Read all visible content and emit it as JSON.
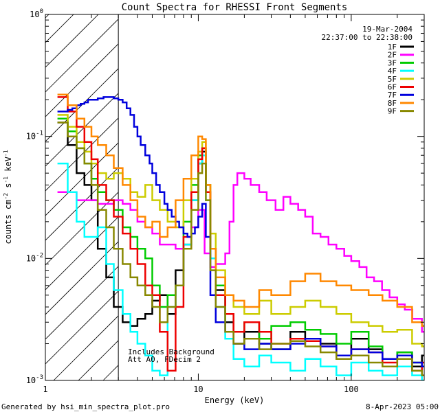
{
  "chart_data": {
    "type": "line",
    "title": "Count Spectra for RHESSI Front Segments",
    "xlabel": "Energy (keV)",
    "ylabel_main": "counts cm",
    "ylabel_exp1": "-2",
    "ylabel_mid": " s",
    "ylabel_exp2": "-1",
    "ylabel_end": " keV",
    "ylabel_exp3": "-1",
    "xscale": "log",
    "yscale": "log",
    "xlim": [
      1,
      300
    ],
    "ylim": [
      0.001,
      1
    ],
    "x_ticks": [
      {
        "value": 1,
        "label": "1"
      },
      {
        "value": 10,
        "label": "10"
      },
      {
        "value": 100,
        "label": "100"
      }
    ],
    "y_ticks": [
      {
        "value": 1,
        "mantissa": "10",
        "exp": "0"
      },
      {
        "value": 0.1,
        "mantissa": "10",
        "exp": "-1"
      },
      {
        "value": 0.01,
        "mantissa": "10",
        "exp": "-2"
      },
      {
        "value": 0.001,
        "mantissa": "10",
        "exp": "-3"
      }
    ],
    "date": "19-Mar-2004",
    "time_range": "22:37:00 to 22:38:00",
    "hatched_region_xmax": 3,
    "notes": [
      "Includes Background",
      "Att A0, FDecim 2"
    ],
    "footer_left": "Generated by hsi_min_spectra_plot.pro",
    "footer_right": "8-Apr-2023 05:00",
    "series": [
      {
        "name": "1F",
        "color": "#000000",
        "x": [
          1.2,
          1.4,
          1.6,
          1.8,
          2.0,
          2.2,
          2.5,
          2.8,
          3.2,
          3.6,
          4.0,
          4.5,
          5.0,
          5.6,
          6.3,
          7.1,
          8.0,
          9.0,
          10.0,
          10.6,
          11.2,
          12.0,
          13.0,
          15.0,
          17.0,
          20.0,
          25.0,
          30.0,
          40.0,
          50.0,
          63.0,
          80.0,
          100.0,
          130.0,
          160.0,
          200.0,
          250.0,
          290.0
        ],
        "y": [
          0.13,
          0.085,
          0.05,
          0.04,
          0.03,
          0.012,
          0.007,
          0.004,
          0.003,
          0.0028,
          0.0032,
          0.0035,
          0.0045,
          0.005,
          0.0035,
          0.008,
          0.013,
          0.03,
          0.06,
          0.075,
          0.035,
          0.012,
          0.0055,
          0.003,
          0.002,
          0.0025,
          0.002,
          0.0018,
          0.0025,
          0.0022,
          0.002,
          0.0016,
          0.0022,
          0.0018,
          0.0015,
          0.0017,
          0.0013,
          0.0016
        ]
      },
      {
        "name": "2F",
        "color": "#ff00ff",
        "x": [
          1.2,
          1.4,
          1.6,
          1.8,
          2.0,
          2.2,
          2.5,
          2.8,
          3.2,
          3.6,
          4.0,
          4.5,
          5.0,
          5.6,
          6.3,
          7.1,
          8.0,
          9.0,
          10.0,
          11.0,
          12.0,
          13.0,
          14.0,
          15.0,
          16.0,
          17.0,
          18.0,
          20.0,
          22.0,
          25.0,
          28.0,
          32.0,
          36.0,
          40.0,
          45.0,
          50.0,
          56.0,
          63.0,
          71.0,
          80.0,
          90.0,
          100.0,
          113.0,
          126.0,
          141.0,
          159.0,
          178.0,
          200.0,
          224.0,
          251.0,
          290.0
        ],
        "y": [
          0.035,
          0.035,
          0.03,
          0.03,
          0.03,
          0.028,
          0.028,
          0.03,
          0.028,
          0.025,
          0.02,
          0.018,
          0.016,
          0.013,
          0.013,
          0.012,
          0.012,
          0.018,
          0.025,
          0.011,
          0.0085,
          0.009,
          0.009,
          0.011,
          0.02,
          0.04,
          0.05,
          0.045,
          0.04,
          0.035,
          0.03,
          0.025,
          0.032,
          0.028,
          0.025,
          0.022,
          0.016,
          0.015,
          0.013,
          0.012,
          0.0105,
          0.0095,
          0.0085,
          0.007,
          0.0065,
          0.0055,
          0.0048,
          0.0042,
          0.0038,
          0.0032,
          0.0025
        ]
      },
      {
        "name": "3F",
        "color": "#00cc00",
        "x": [
          1.2,
          1.4,
          1.6,
          1.8,
          2.0,
          2.2,
          2.5,
          2.8,
          3.2,
          3.6,
          4.0,
          4.5,
          5.0,
          5.6,
          6.3,
          7.1,
          8.0,
          9.0,
          10.0,
          10.6,
          11.2,
          12.0,
          13.0,
          15.0,
          17.0,
          20.0,
          25.0,
          30.0,
          40.0,
          50.0,
          63.0,
          80.0,
          100.0,
          130.0,
          160.0,
          200.0,
          250.0,
          290.0
        ],
        "y": [
          0.14,
          0.11,
          0.08,
          0.06,
          0.045,
          0.035,
          0.03,
          0.025,
          0.018,
          0.015,
          0.012,
          0.01,
          0.006,
          0.004,
          0.005,
          0.006,
          0.02,
          0.04,
          0.07,
          0.08,
          0.04,
          0.012,
          0.006,
          0.0035,
          0.0025,
          0.003,
          0.0022,
          0.0028,
          0.003,
          0.0026,
          0.0024,
          0.002,
          0.0025,
          0.0019,
          0.0015,
          0.0017,
          0.0014,
          0.0013
        ]
      },
      {
        "name": "4F",
        "color": "#00ffff",
        "x": [
          1.2,
          1.4,
          1.6,
          1.8,
          2.0,
          2.2,
          2.5,
          2.8,
          3.2,
          3.6,
          4.0,
          4.5,
          5.0,
          5.6,
          6.3,
          7.1,
          8.0,
          9.0,
          10.0,
          10.6,
          11.2,
          12.0,
          13.0,
          15.0,
          17.0,
          20.0,
          25.0,
          30.0,
          40.0,
          50.0,
          63.0,
          80.0,
          100.0,
          130.0,
          160.0,
          200.0,
          250.0,
          290.0
        ],
        "y": [
          0.06,
          0.035,
          0.02,
          0.015,
          0.015,
          0.018,
          0.009,
          0.0055,
          0.0035,
          0.0025,
          0.002,
          0.0016,
          0.0012,
          0.0011,
          0.004,
          0.006,
          0.013,
          0.03,
          0.06,
          0.07,
          0.03,
          0.01,
          0.004,
          0.0022,
          0.0015,
          0.0013,
          0.0016,
          0.0014,
          0.0012,
          0.0015,
          0.0013,
          0.0011,
          0.0014,
          0.0012,
          0.0011,
          0.0013,
          0.0011,
          0.001
        ]
      },
      {
        "name": "5F",
        "color": "#cccc00",
        "x": [
          1.2,
          1.4,
          1.6,
          1.8,
          2.0,
          2.2,
          2.5,
          2.8,
          3.2,
          3.6,
          4.0,
          4.5,
          5.0,
          5.6,
          6.3,
          7.1,
          8.0,
          9.0,
          10.0,
          10.6,
          11.2,
          12.0,
          13.0,
          15.0,
          17.0,
          20.0,
          25.0,
          30.0,
          40.0,
          50.0,
          63.0,
          80.0,
          100.0,
          130.0,
          160.0,
          200.0,
          250.0,
          290.0
        ],
        "y": [
          0.15,
          0.12,
          0.09,
          0.075,
          0.06,
          0.05,
          0.045,
          0.05,
          0.045,
          0.035,
          0.032,
          0.04,
          0.03,
          0.025,
          0.02,
          0.018,
          0.03,
          0.045,
          0.075,
          0.09,
          0.04,
          0.016,
          0.008,
          0.005,
          0.004,
          0.0035,
          0.0045,
          0.0035,
          0.004,
          0.0045,
          0.004,
          0.0035,
          0.003,
          0.0028,
          0.0025,
          0.0026,
          0.002,
          0.0019
        ]
      },
      {
        "name": "6F",
        "color": "#ee0000",
        "x": [
          1.2,
          1.4,
          1.6,
          1.8,
          2.0,
          2.2,
          2.5,
          2.8,
          3.2,
          3.6,
          4.0,
          4.5,
          5.0,
          5.6,
          6.3,
          7.1,
          8.0,
          9.0,
          10.0,
          10.6,
          11.2,
          12.0,
          13.0,
          15.0,
          17.0,
          20.0,
          25.0,
          30.0,
          40.0,
          50.0,
          63.0,
          80.0,
          100.0,
          130.0,
          160.0,
          200.0,
          250.0,
          290.0
        ],
        "y": [
          0.21,
          0.16,
          0.12,
          0.09,
          0.065,
          0.04,
          0.03,
          0.022,
          0.016,
          0.012,
          0.009,
          0.006,
          0.005,
          0.0025,
          0.0012,
          0.004,
          0.015,
          0.035,
          0.065,
          0.08,
          0.035,
          0.012,
          0.005,
          0.0035,
          0.0025,
          0.003,
          0.0025,
          0.002,
          0.0022,
          0.0021,
          0.0019,
          0.0016,
          0.0018,
          0.0017,
          0.0014,
          0.0016,
          0.0012,
          0.0014
        ]
      },
      {
        "name": "7F",
        "color": "#0000dd",
        "x": [
          1.2,
          1.3,
          1.4,
          1.5,
          1.6,
          1.7,
          1.8,
          1.9,
          2.0,
          2.2,
          2.4,
          2.6,
          2.8,
          3.0,
          3.2,
          3.4,
          3.6,
          3.8,
          4.0,
          4.2,
          4.5,
          4.8,
          5.0,
          5.3,
          5.6,
          6.0,
          6.3,
          6.7,
          7.1,
          7.5,
          8.0,
          8.5,
          9.0,
          9.5,
          10.0,
          10.6,
          11.2,
          12.0,
          13.0,
          15.0,
          17.0,
          20.0,
          25.0,
          30.0,
          40.0,
          50.0,
          63.0,
          80.0,
          100.0,
          130.0,
          160.0,
          200.0,
          250.0,
          290.0
        ],
        "y": [
          0.16,
          0.16,
          0.165,
          0.17,
          0.18,
          0.185,
          0.19,
          0.2,
          0.2,
          0.205,
          0.21,
          0.21,
          0.205,
          0.2,
          0.19,
          0.17,
          0.15,
          0.12,
          0.1,
          0.085,
          0.07,
          0.06,
          0.05,
          0.04,
          0.035,
          0.028,
          0.025,
          0.022,
          0.02,
          0.018,
          0.016,
          0.015,
          0.016,
          0.018,
          0.022,
          0.028,
          0.015,
          0.005,
          0.003,
          0.0025,
          0.002,
          0.0018,
          0.002,
          0.0018,
          0.002,
          0.0022,
          0.0019,
          0.0016,
          0.0018,
          0.0017,
          0.0015,
          0.0016,
          0.0014,
          0.0013
        ]
      },
      {
        "name": "8F",
        "color": "#ff8800",
        "x": [
          1.2,
          1.4,
          1.6,
          1.8,
          2.0,
          2.2,
          2.5,
          2.8,
          3.2,
          3.6,
          4.0,
          4.5,
          5.0,
          5.6,
          6.3,
          7.1,
          8.0,
          9.0,
          10.0,
          10.6,
          11.2,
          12.0,
          13.0,
          15.0,
          17.0,
          20.0,
          25.0,
          30.0,
          40.0,
          50.0,
          63.0,
          80.0,
          100.0,
          130.0,
          160.0,
          200.0,
          250.0,
          290.0
        ],
        "y": [
          0.22,
          0.18,
          0.14,
          0.12,
          0.1,
          0.085,
          0.07,
          0.055,
          0.04,
          0.03,
          0.022,
          0.018,
          0.02,
          0.015,
          0.018,
          0.03,
          0.045,
          0.07,
          0.1,
          0.095,
          0.04,
          0.012,
          0.007,
          0.005,
          0.0045,
          0.004,
          0.0055,
          0.005,
          0.0065,
          0.0075,
          0.0065,
          0.006,
          0.0055,
          0.005,
          0.0045,
          0.004,
          0.003,
          0.0028
        ]
      },
      {
        "name": "9F",
        "color": "#888800",
        "x": [
          1.2,
          1.4,
          1.6,
          1.8,
          2.0,
          2.2,
          2.5,
          2.8,
          3.2,
          3.6,
          4.0,
          4.5,
          5.0,
          5.6,
          6.3,
          7.1,
          8.0,
          9.0,
          10.0,
          10.6,
          11.2,
          12.0,
          13.0,
          15.0,
          17.0,
          20.0,
          25.0,
          30.0,
          40.0,
          50.0,
          63.0,
          80.0,
          100.0,
          130.0,
          160.0,
          200.0,
          250.0,
          290.0
        ],
        "y": [
          0.13,
          0.1,
          0.08,
          0.06,
          0.04,
          0.025,
          0.018,
          0.012,
          0.009,
          0.007,
          0.006,
          0.005,
          0.004,
          0.003,
          0.004,
          0.006,
          0.012,
          0.025,
          0.05,
          0.06,
          0.03,
          0.008,
          0.004,
          0.0025,
          0.002,
          0.0022,
          0.0018,
          0.002,
          0.0021,
          0.0019,
          0.0017,
          0.0015,
          0.0016,
          0.0014,
          0.0013,
          0.0015,
          0.0012,
          0.0011
        ]
      }
    ]
  }
}
